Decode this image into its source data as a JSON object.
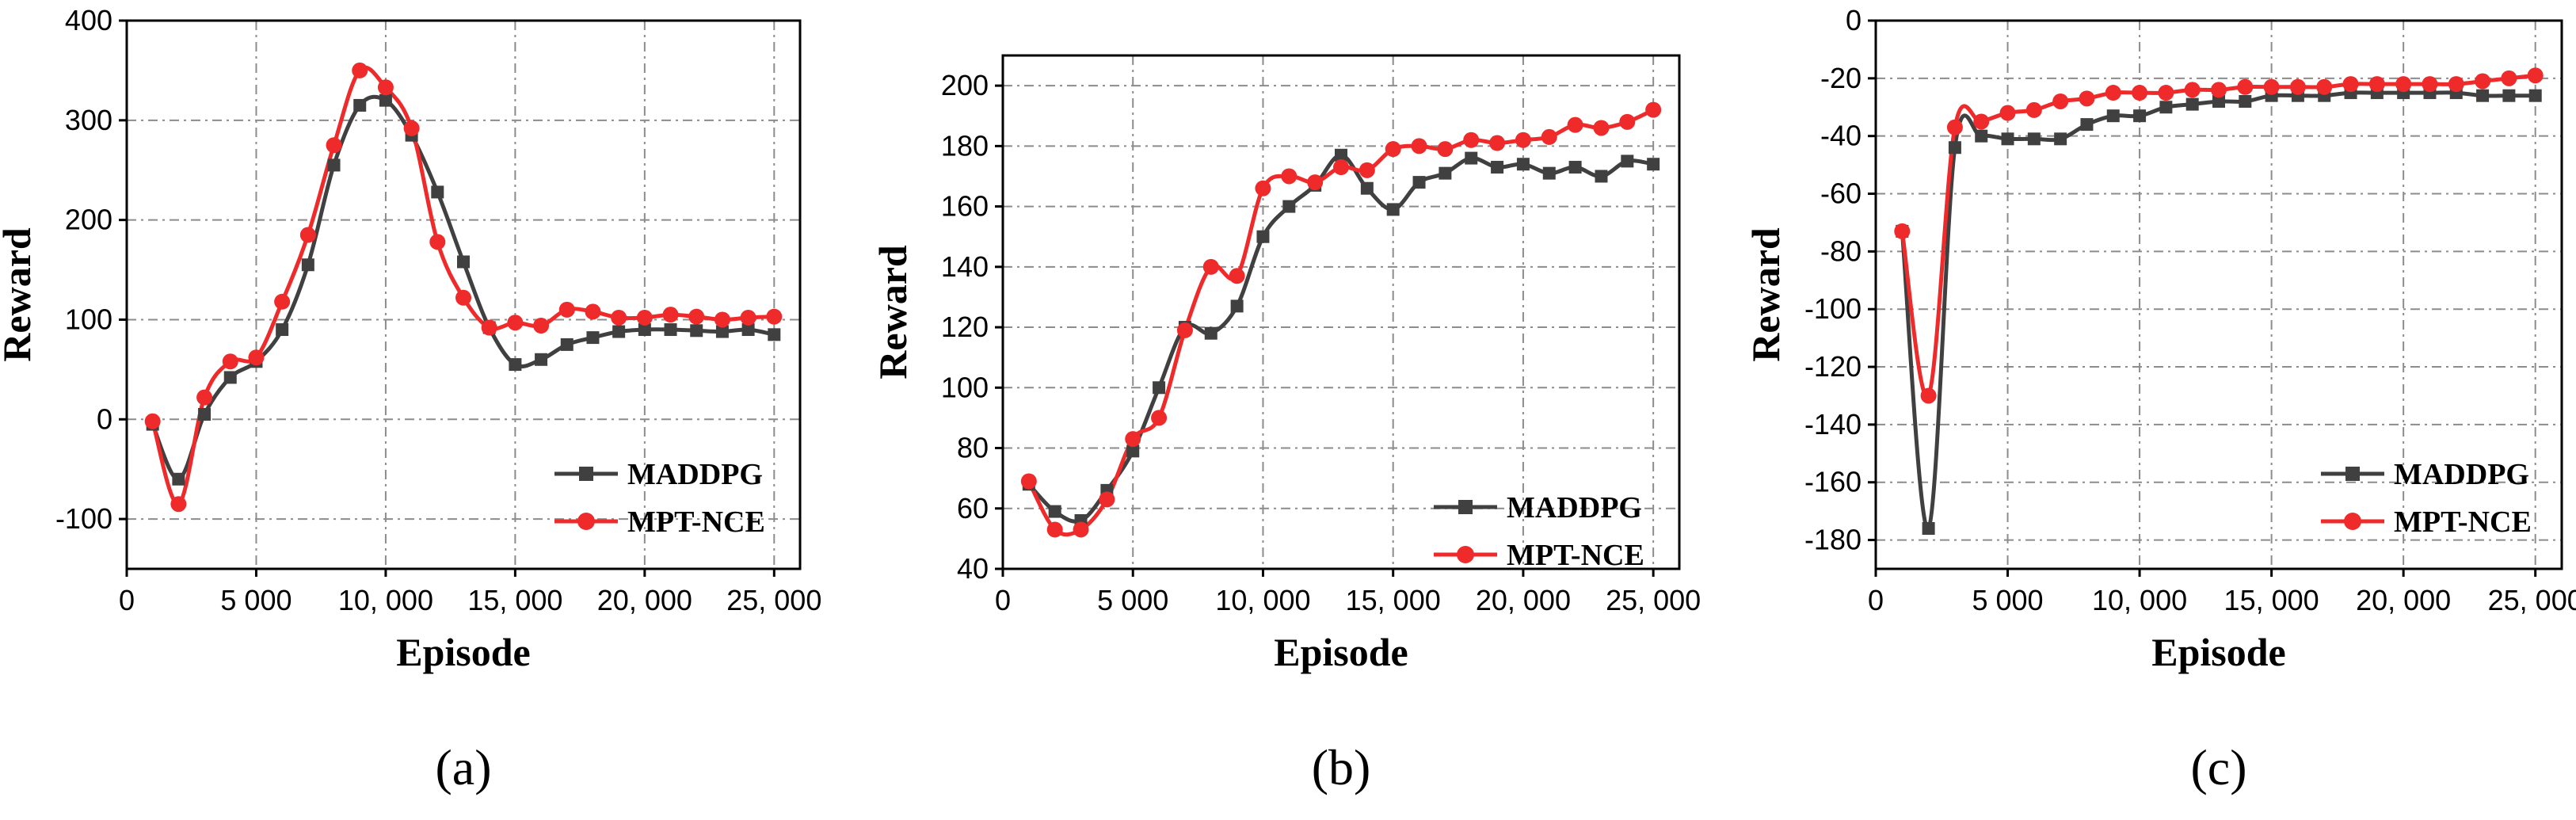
{
  "colors": {
    "maddpg": "#404040",
    "mptnce": "#ee2a2a",
    "grid": "#8c8c8c",
    "axis": "#000000"
  },
  "icons": {
    "maddpg_marker": "square-marker-icon",
    "mptnce_marker": "circle-marker-icon"
  },
  "chart_data": [
    {
      "type": "line",
      "panel_label": "(a)",
      "xlabel": "Episode",
      "ylabel": "Reward",
      "xlim": [
        0,
        26000
      ],
      "ylim": [
        -150,
        400
      ],
      "xticks": [
        0,
        5000,
        10000,
        15000,
        20000,
        25000
      ],
      "xtick_labels": [
        "0",
        "5 000",
        "10, 000",
        "15, 000",
        "20, 000",
        "25, 000"
      ],
      "yticks": [
        -100,
        0,
        100,
        200,
        300,
        400
      ],
      "ytick_labels": [
        "-100",
        "0",
        "100",
        "200",
        "300",
        "400"
      ],
      "legend_position": "bottom-right",
      "x": [
        1000,
        2000,
        3000,
        4000,
        5000,
        6000,
        7000,
        8000,
        9000,
        10000,
        11000,
        12000,
        13000,
        14000,
        15000,
        16000,
        17000,
        18000,
        19000,
        20000,
        21000,
        22000,
        23000,
        24000,
        25000
      ],
      "series": [
        {
          "name": "MADDPG",
          "marker": "square",
          "values": [
            -5,
            -60,
            5,
            42,
            58,
            90,
            155,
            255,
            315,
            320,
            285,
            228,
            158,
            92,
            55,
            60,
            75,
            82,
            88,
            90,
            90,
            89,
            88,
            90,
            85
          ]
        },
        {
          "name": "MPT-NCE",
          "marker": "circle",
          "values": [
            -2,
            -85,
            22,
            58,
            62,
            118,
            185,
            275,
            350,
            333,
            292,
            178,
            122,
            92,
            97,
            94,
            110,
            108,
            102,
            102,
            105,
            103,
            100,
            102,
            103
          ]
        }
      ]
    },
    {
      "type": "line",
      "panel_label": "(b)",
      "xlabel": "Episode",
      "ylabel": "Reward",
      "xlim": [
        0,
        26000
      ],
      "ylim": [
        40,
        210
      ],
      "xticks": [
        0,
        5000,
        10000,
        15000,
        20000,
        25000
      ],
      "xtick_labels": [
        "0",
        "5 000",
        "10, 000",
        "15, 000",
        "20, 000",
        "25, 000"
      ],
      "yticks": [
        40,
        60,
        80,
        100,
        120,
        140,
        160,
        180,
        200
      ],
      "ytick_labels": [
        "40",
        "60",
        "80",
        "100",
        "120",
        "140",
        "160",
        "180",
        "200"
      ],
      "legend_position": "bottom-right",
      "x": [
        1000,
        2000,
        3000,
        4000,
        5000,
        6000,
        7000,
        8000,
        9000,
        10000,
        11000,
        12000,
        13000,
        14000,
        15000,
        16000,
        17000,
        18000,
        19000,
        20000,
        21000,
        22000,
        23000,
        24000,
        25000
      ],
      "series": [
        {
          "name": "MADDPG",
          "marker": "square",
          "values": [
            68,
            59,
            56,
            66,
            79,
            100,
            120,
            118,
            127,
            150,
            160,
            167,
            177,
            166,
            159,
            168,
            171,
            176,
            173,
            174,
            171,
            173,
            170,
            175,
            174
          ]
        },
        {
          "name": "MPT-NCE",
          "marker": "circle",
          "values": [
            69,
            53,
            53,
            63,
            83,
            90,
            119,
            140,
            137,
            166,
            170,
            168,
            173,
            172,
            179,
            180,
            179,
            182,
            181,
            182,
            183,
            187,
            186,
            188,
            192
          ]
        }
      ]
    },
    {
      "type": "line",
      "panel_label": "(c)",
      "xlabel": "Episode",
      "ylabel": "Reward",
      "xlim": [
        0,
        26000
      ],
      "ylim": [
        -190,
        0
      ],
      "xticks": [
        0,
        5000,
        10000,
        15000,
        20000,
        25000
      ],
      "xtick_labels": [
        "0",
        "5 000",
        "10, 000",
        "15, 000",
        "20, 000",
        "25, 000"
      ],
      "yticks": [
        -180,
        -160,
        -140,
        -120,
        -100,
        -80,
        -60,
        -40,
        -20,
        0
      ],
      "ytick_labels": [
        "-180",
        "-160",
        "-140",
        "-120",
        "-100",
        "-80",
        "-60",
        "-40",
        "-20",
        "0"
      ],
      "legend_position": "bottom-right",
      "x": [
        1000,
        2000,
        3000,
        4000,
        5000,
        6000,
        7000,
        8000,
        9000,
        10000,
        11000,
        12000,
        13000,
        14000,
        15000,
        16000,
        17000,
        18000,
        19000,
        20000,
        21000,
        22000,
        23000,
        24000,
        25000
      ],
      "series": [
        {
          "name": "MADDPG",
          "marker": "square",
          "values": [
            -73,
            -176,
            -44,
            -40,
            -41,
            -41,
            -41,
            -36,
            -33,
            -33,
            -30,
            -29,
            -28,
            -28,
            -26,
            -26,
            -26,
            -25,
            -25,
            -25,
            -25,
            -25,
            -26,
            -26,
            -26
          ]
        },
        {
          "name": "MPT-NCE",
          "marker": "circle",
          "values": [
            -73,
            -130,
            -37,
            -35,
            -32,
            -31,
            -28,
            -27,
            -25,
            -25,
            -25,
            -24,
            -24,
            -23,
            -23,
            -23,
            -23,
            -22,
            -22,
            -22,
            -22,
            -22,
            -21,
            -20,
            -19
          ]
        }
      ]
    }
  ]
}
